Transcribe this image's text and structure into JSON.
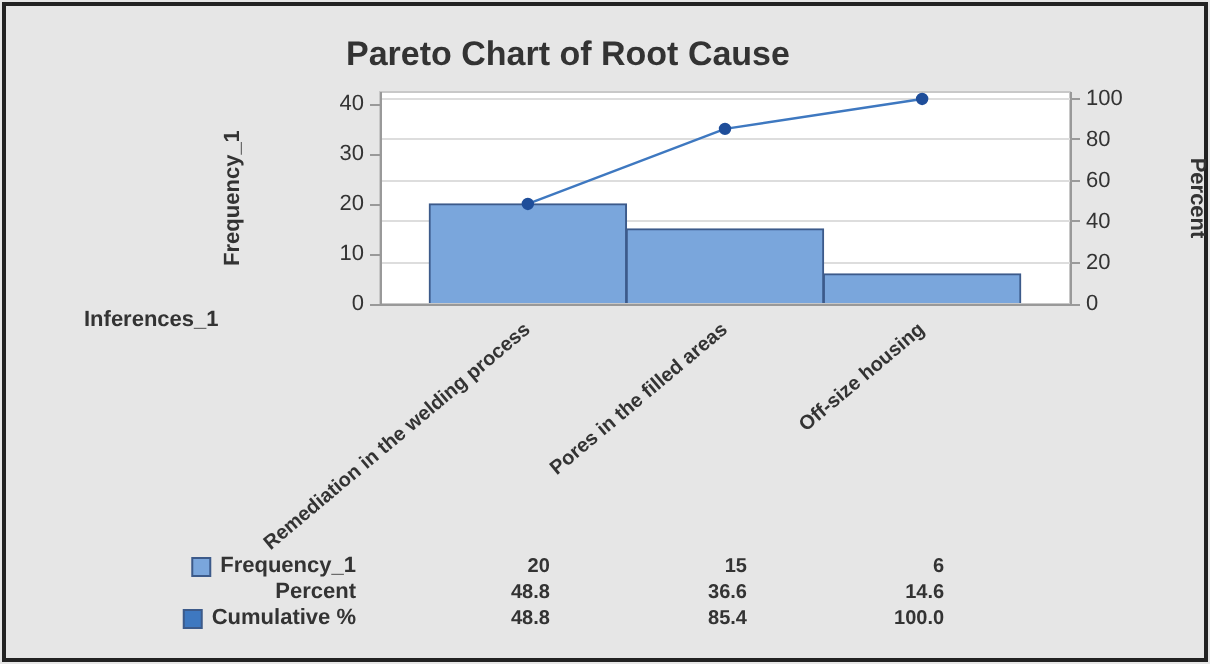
{
  "chart_data": {
    "type": "bar",
    "title": "Pareto Chart of Root Cause",
    "xlabel": "Inferences_1",
    "ylabel": "Frequency_1",
    "y2label": "Percent",
    "categories": [
      "Remediation in the welding process",
      "Pores in the filled areas",
      "Off-size housing"
    ],
    "series": [
      {
        "name": "Frequency_1",
        "color": "#7aa6dc",
        "values": [
          20,
          15,
          6
        ]
      },
      {
        "name": "Cumulative %",
        "type": "line",
        "axis": "y2",
        "color": "#3e78c0",
        "values": [
          48.8,
          85.4,
          100
        ],
        "value_labels": [
          "48.8",
          "85.4",
          "100.0"
        ]
      }
    ],
    "annotations": [
      "Percent",
      "48.8",
      "36.6",
      "14.6"
    ],
    "ylim": [
      0,
      42.4
    ],
    "yticks": [
      0,
      10,
      20,
      30,
      40
    ],
    "y2lim": [
      0,
      103.4
    ],
    "y2ticks": [
      0,
      20,
      40,
      60,
      80,
      100
    ],
    "grid": "y",
    "legend": "bottom left",
    "marker": "circle",
    "line_style": "solid",
    "data_labels": true
  }
}
